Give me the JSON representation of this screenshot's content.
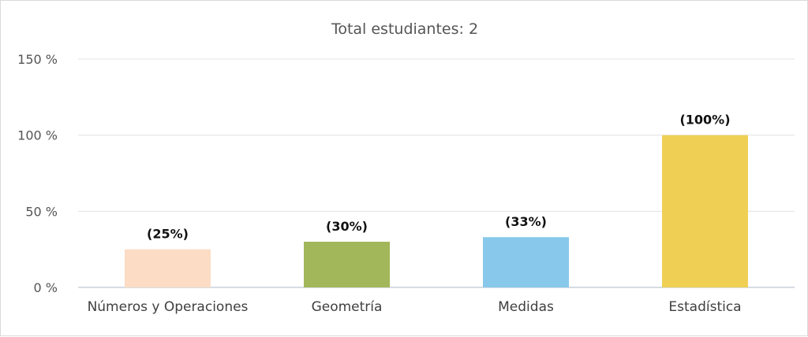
{
  "chart_data": {
    "type": "bar",
    "title": "Total estudiantes: 2",
    "categories": [
      "Números y Operaciones",
      "Geometría",
      "Medidas",
      "Estadística"
    ],
    "values": [
      25,
      30,
      33,
      100
    ],
    "data_labels": [
      "(25%)",
      "(30%)",
      "(33%)",
      "(100%)"
    ],
    "colors": [
      "#fcdcc4",
      "#a2b65a",
      "#88c8ea",
      "#f0d054"
    ],
    "yticks": [
      0,
      50,
      100,
      150
    ],
    "ytick_labels": [
      "0 %",
      "50 %",
      "100 %",
      "150 %"
    ],
    "ylim": [
      0,
      150
    ],
    "grid": true,
    "legend": "none"
  }
}
